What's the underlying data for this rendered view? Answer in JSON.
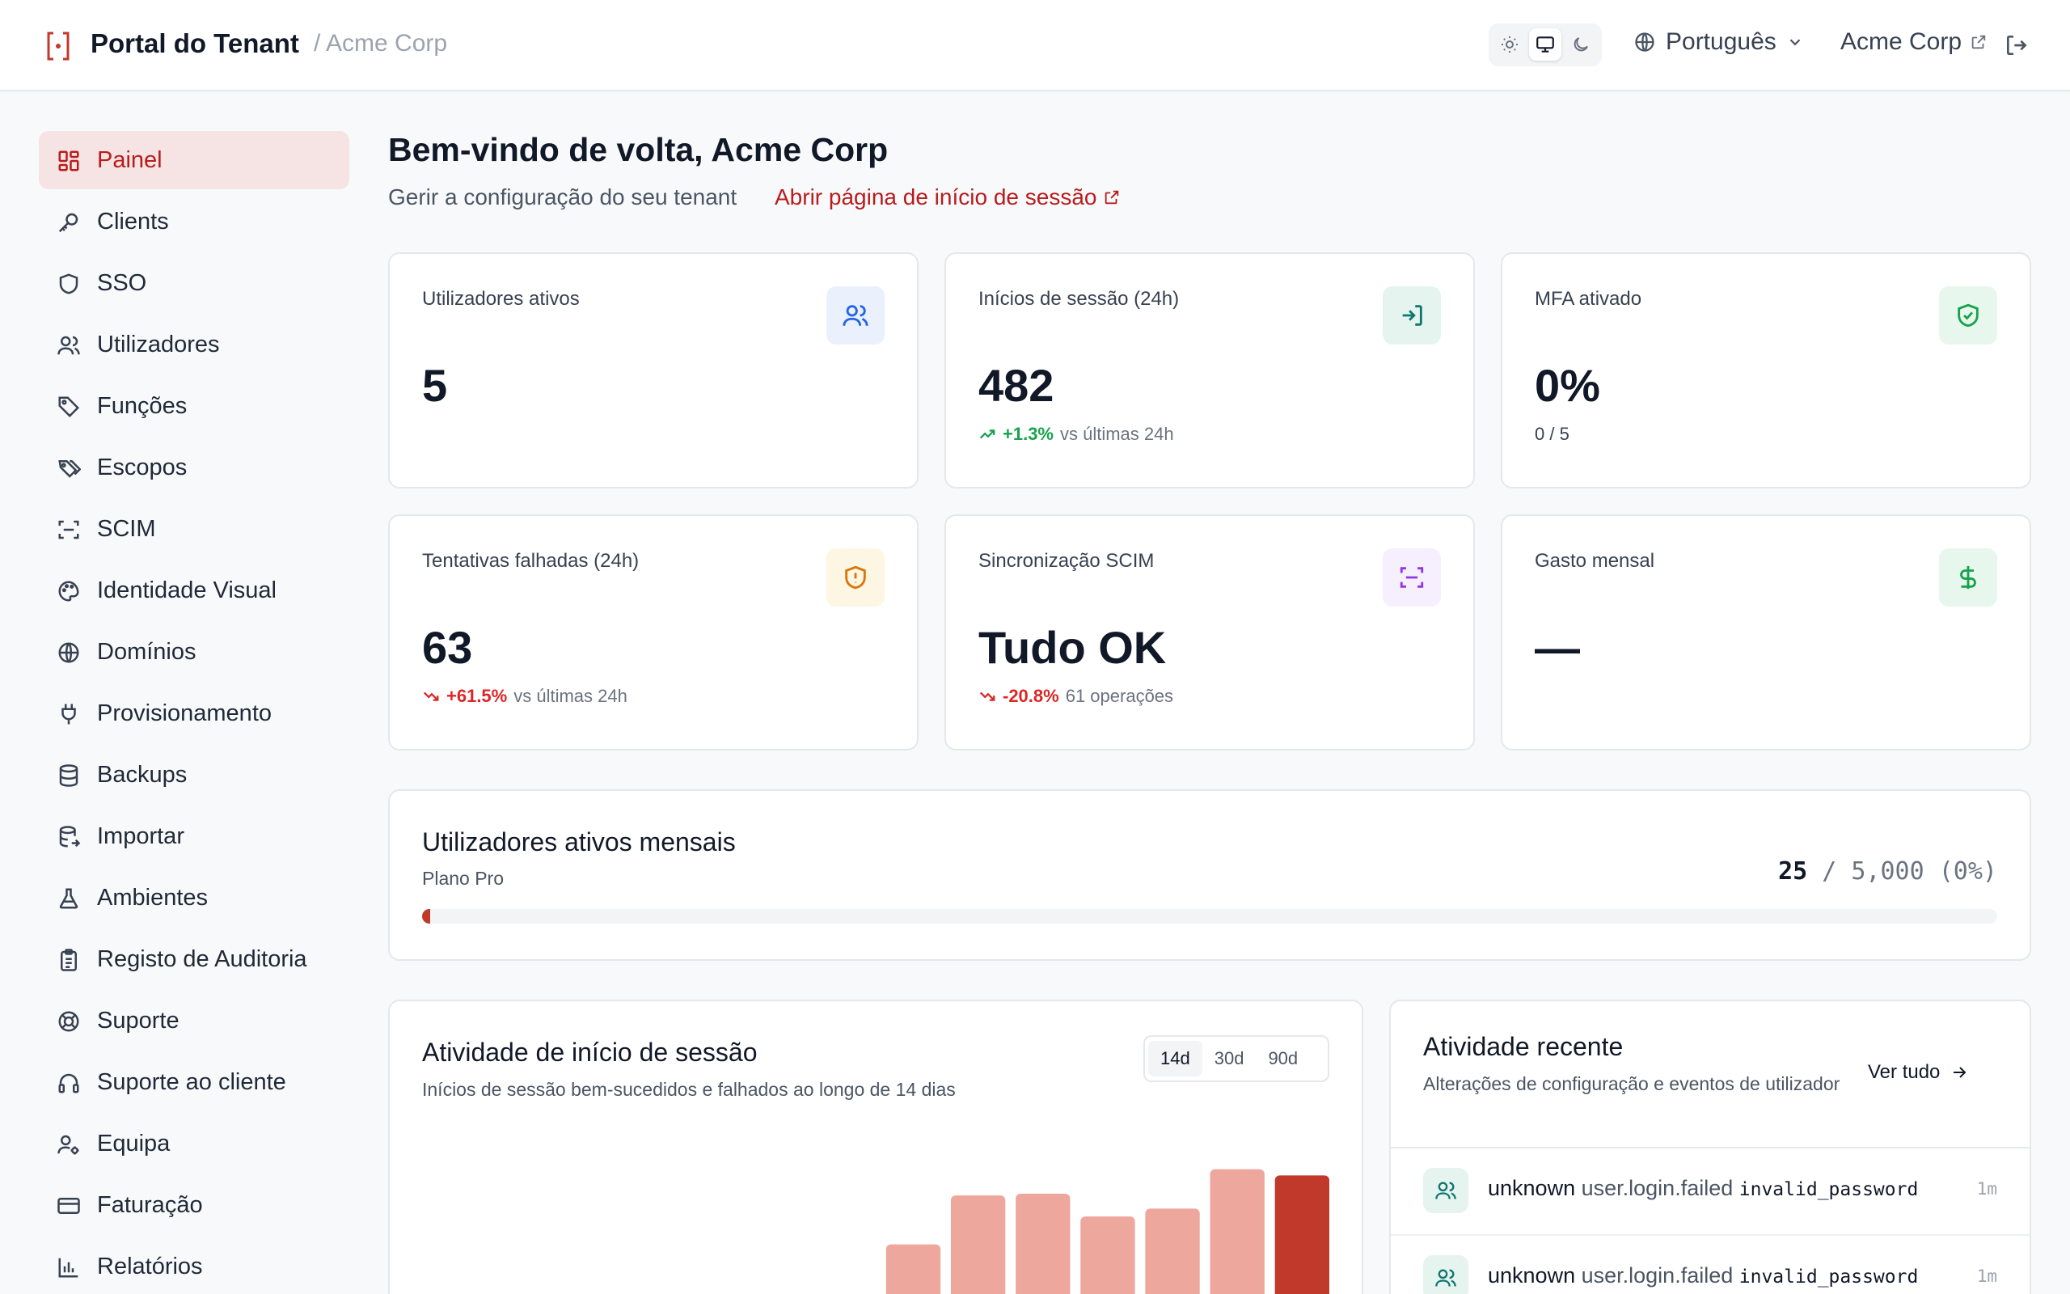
{
  "header": {
    "app_title": "Portal do Tenant",
    "breadcrumb": "/ Acme Corp",
    "language": "Português",
    "tenant_name": "Acme Corp"
  },
  "sidebar": {
    "items": [
      {
        "label": "Painel",
        "icon": "dashboard-icon",
        "active": true
      },
      {
        "label": "Clients",
        "icon": "key-icon"
      },
      {
        "label": "SSO",
        "icon": "shield-icon"
      },
      {
        "label": "Utilizadores",
        "icon": "users-icon"
      },
      {
        "label": "Funções",
        "icon": "tag-icon"
      },
      {
        "label": "Escopos",
        "icon": "tags-icon"
      },
      {
        "label": "SCIM",
        "icon": "scan-icon"
      },
      {
        "label": "Identidade Visual",
        "icon": "palette-icon"
      },
      {
        "label": "Domínios",
        "icon": "globe-icon"
      },
      {
        "label": "Provisionamento",
        "icon": "plug-icon"
      },
      {
        "label": "Backups",
        "icon": "database-icon"
      },
      {
        "label": "Importar",
        "icon": "database-import-icon"
      },
      {
        "label": "Ambientes",
        "icon": "flask-icon"
      },
      {
        "label": "Registo de Auditoria",
        "icon": "clipboard-icon"
      },
      {
        "label": "Suporte",
        "icon": "lifebuoy-icon"
      },
      {
        "label": "Suporte ao cliente",
        "icon": "headphones-icon"
      },
      {
        "label": "Equipa",
        "icon": "user-cog-icon"
      },
      {
        "label": "Faturação",
        "icon": "credit-card-icon"
      },
      {
        "label": "Relatórios",
        "icon": "bar-chart-icon"
      }
    ]
  },
  "main": {
    "welcome": "Bem-vindo de volta, Acme Corp",
    "subtitle": "Gerir a configuração do seu tenant",
    "login_page_link": "Abrir página de início de sessão"
  },
  "stats": [
    {
      "label": "Utilizadores ativos",
      "value": "5",
      "icon": "users-icon",
      "color": "#2563eb",
      "bg": "#eaf1fd"
    },
    {
      "label": "Inícios de sessão (24h)",
      "value": "482",
      "delta": "+1.3%",
      "trend": "up",
      "note": "vs últimas 24h",
      "icon": "log-in-icon",
      "color": "#0f766e",
      "bg": "#e6f4ef"
    },
    {
      "label": "MFA ativado",
      "value": "0%",
      "note": "0 / 5",
      "icon": "shield-check-icon",
      "color": "#16a34a",
      "bg": "#e8f7ee"
    },
    {
      "label": "Tentativas falhadas (24h)",
      "value": "63",
      "delta": "+61.5%",
      "trend": "down",
      "note": "vs últimas 24h",
      "icon": "shield-alert-icon",
      "color": "#d97706",
      "bg": "#fdf6e3"
    },
    {
      "label": "Sincronização SCIM",
      "value": "Tudo OK",
      "delta": "-20.8%",
      "trend": "down",
      "note": "61 operações",
      "icon": "scan-icon",
      "color": "#9333ea",
      "bg": "#f6effd"
    },
    {
      "label": "Gasto mensal",
      "value": "—",
      "icon": "dollar-icon",
      "color": "#16a34a",
      "bg": "#e8f7ee"
    }
  ],
  "mau": {
    "title": "Utilizadores ativos mensais",
    "plan": "Plano Pro",
    "used": "25",
    "limit_text": "/ 5,000 (0%)",
    "fraction": 0.005
  },
  "login_activity": {
    "title": "Atividade de início de sessão",
    "subtitle": "Inícios de sessão bem-sucedidos e falhados ao longo de 14 dias",
    "ranges": [
      "14d",
      "30d",
      "90d"
    ],
    "active_range": "14d",
    "colors": {
      "bar": "#eea79d",
      "highlight": "#c0392b"
    }
  },
  "chart_data": {
    "type": "bar",
    "title": "Atividade de início de sessão",
    "categories": [
      "",
      "",
      "",
      "",
      "",
      "",
      "",
      "",
      "",
      "",
      "",
      "",
      "",
      ""
    ],
    "values": [
      0,
      0,
      0,
      0,
      0,
      0,
      0,
      92,
      148,
      150,
      124,
      133,
      178,
      171
    ],
    "highlight_index": 13
  },
  "recent": {
    "title": "Atividade recente",
    "subtitle": "Alterações de configuração e eventos de utilizador",
    "view_all": "Ver tudo",
    "items": [
      {
        "actor": "unknown",
        "event": "user.login.failed",
        "reason": "invalid_password",
        "time": "1m"
      },
      {
        "actor": "unknown",
        "event": "user.login.failed",
        "reason": "invalid_password",
        "time": "1m"
      }
    ]
  }
}
